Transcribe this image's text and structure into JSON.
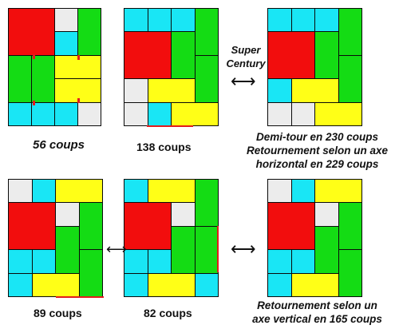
{
  "colors": {
    "red": "#f20d0d",
    "green": "#14dc14",
    "yellow": "#ffff17",
    "cyan": "#19e6f5",
    "grey": "#ececec",
    "mark": "#e21c1c"
  },
  "tile_names": {
    "R": "big-red-square",
    "G": "green-vertical-bar",
    "Y": "yellow-horizontal-bar",
    "C": "small-cyan-square",
    "E": "empty-grey-cell"
  },
  "puzzles": [
    {
      "id": "p1",
      "caption": "56 coups",
      "tiles": [
        [
          "R",
          0,
          0,
          2,
          2
        ],
        [
          "E",
          2,
          0,
          1,
          1
        ],
        [
          "G",
          3,
          0,
          1,
          2
        ],
        [
          "C",
          2,
          1,
          1,
          1
        ],
        [
          "G",
          0,
          2,
          1,
          2
        ],
        [
          "G",
          1,
          2,
          1,
          2
        ],
        [
          "Y",
          2,
          2,
          2,
          1
        ],
        [
          "Y",
          2,
          3,
          2,
          1
        ],
        [
          "C",
          0,
          4,
          1,
          1
        ],
        [
          "C",
          1,
          4,
          1,
          1
        ],
        [
          "C",
          2,
          4,
          1,
          1
        ],
        [
          "E",
          3,
          4,
          1,
          1
        ]
      ]
    },
    {
      "id": "p2",
      "caption": "138 coups",
      "tiles": [
        [
          "C",
          0,
          0,
          1,
          1
        ],
        [
          "C",
          1,
          0,
          1,
          1
        ],
        [
          "C",
          2,
          0,
          1,
          1
        ],
        [
          "G",
          3,
          0,
          1,
          2
        ],
        [
          "R",
          0,
          1,
          2,
          2
        ],
        [
          "G",
          2,
          1,
          1,
          2
        ],
        [
          "G",
          3,
          2,
          1,
          2
        ],
        [
          "E",
          0,
          3,
          1,
          1
        ],
        [
          "Y",
          1,
          3,
          2,
          1
        ],
        [
          "E",
          0,
          4,
          1,
          1
        ],
        [
          "C",
          1,
          4,
          1,
          1
        ],
        [
          "Y",
          2,
          4,
          2,
          1
        ]
      ]
    },
    {
      "id": "p3",
      "tiles": [
        [
          "C",
          0,
          0,
          1,
          1
        ],
        [
          "C",
          1,
          0,
          1,
          1
        ],
        [
          "C",
          2,
          0,
          1,
          1
        ],
        [
          "G",
          3,
          0,
          1,
          2
        ],
        [
          "R",
          0,
          1,
          2,
          2
        ],
        [
          "G",
          2,
          1,
          1,
          2
        ],
        [
          "G",
          3,
          2,
          1,
          2
        ],
        [
          "C",
          0,
          3,
          1,
          1
        ],
        [
          "Y",
          1,
          3,
          2,
          1
        ],
        [
          "E",
          0,
          4,
          1,
          1
        ],
        [
          "E",
          1,
          4,
          1,
          1
        ],
        [
          "Y",
          2,
          4,
          2,
          1
        ]
      ]
    },
    {
      "id": "p4",
      "caption": "89 coups",
      "tiles": [
        [
          "E",
          0,
          0,
          1,
          1
        ],
        [
          "C",
          1,
          0,
          1,
          1
        ],
        [
          "Y",
          2,
          0,
          2,
          1
        ],
        [
          "R",
          0,
          1,
          2,
          2
        ],
        [
          "E",
          2,
          1,
          1,
          1
        ],
        [
          "G",
          3,
          1,
          1,
          2
        ],
        [
          "G",
          2,
          2,
          1,
          2
        ],
        [
          "G",
          3,
          3,
          1,
          2
        ],
        [
          "C",
          0,
          3,
          1,
          1
        ],
        [
          "C",
          1,
          3,
          1,
          1
        ],
        [
          "C",
          0,
          4,
          1,
          1
        ],
        [
          "Y",
          1,
          4,
          2,
          1
        ]
      ]
    },
    {
      "id": "p5",
      "caption": "82 coups",
      "tiles": [
        [
          "C",
          0,
          0,
          1,
          1
        ],
        [
          "Y",
          1,
          0,
          2,
          1
        ],
        [
          "G",
          3,
          0,
          1,
          2
        ],
        [
          "R",
          0,
          1,
          2,
          2
        ],
        [
          "E",
          2,
          1,
          1,
          1
        ],
        [
          "G",
          2,
          2,
          1,
          2
        ],
        [
          "G",
          3,
          2,
          1,
          2
        ],
        [
          "C",
          0,
          3,
          1,
          1
        ],
        [
          "C",
          1,
          3,
          1,
          1
        ],
        [
          "C",
          0,
          4,
          1,
          1
        ],
        [
          "Y",
          1,
          4,
          2,
          1
        ],
        [
          "C",
          3,
          4,
          1,
          1
        ]
      ]
    },
    {
      "id": "p6",
      "tiles": [
        [
          "E",
          0,
          0,
          1,
          1
        ],
        [
          "C",
          1,
          0,
          1,
          1
        ],
        [
          "Y",
          2,
          0,
          2,
          1
        ],
        [
          "R",
          0,
          1,
          2,
          2
        ],
        [
          "E",
          2,
          1,
          1,
          1
        ],
        [
          "G",
          3,
          1,
          1,
          2
        ],
        [
          "G",
          2,
          2,
          1,
          2
        ],
        [
          "G",
          3,
          3,
          1,
          2
        ],
        [
          "C",
          0,
          3,
          1,
          1
        ],
        [
          "C",
          1,
          3,
          1,
          1
        ],
        [
          "C",
          0,
          4,
          1,
          1
        ],
        [
          "Y",
          1,
          4,
          2,
          1
        ]
      ]
    }
  ],
  "labels": {
    "super_century": "Super\nCentury",
    "note_top": "Demi-tour en 230 coups\nRetournement selon un axe\nhorizontal en 229 coups",
    "note_bottom": "Retournement selon un\naxe vertical en 165 coups"
  },
  "arrow_glyph": "⟷"
}
